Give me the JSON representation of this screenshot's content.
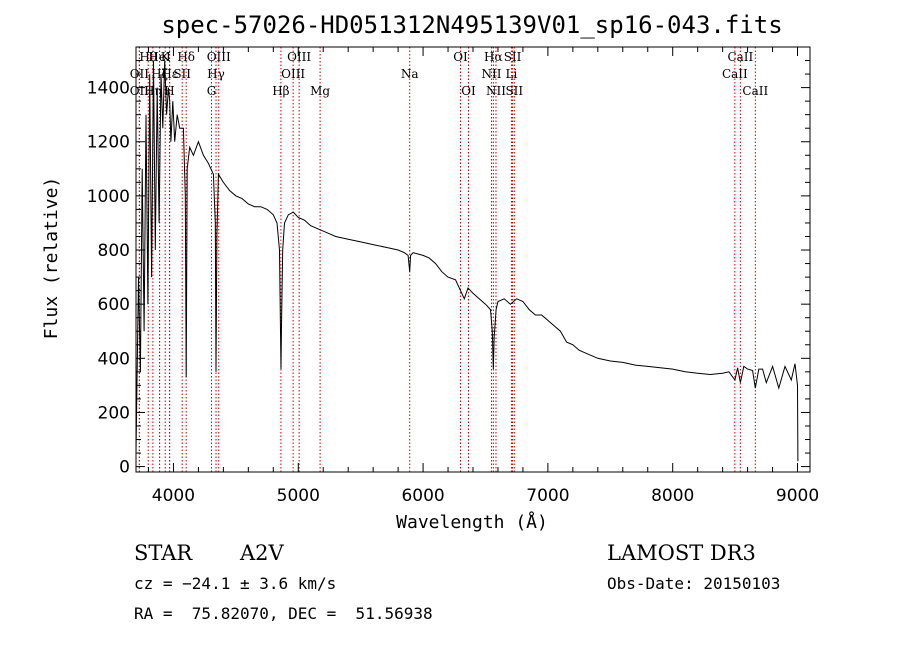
{
  "chart_data": {
    "type": "line",
    "title": "spec-57026-HD051312N495139V01_sp16-043.fits",
    "xlabel": "Wavelength (Å)",
    "ylabel": "Flux (relative)",
    "xlim": [
      3700,
      9100
    ],
    "ylim": [
      -20,
      1550
    ],
    "xticks": [
      4000,
      5000,
      6000,
      7000,
      8000,
      9000
    ],
    "yticks": [
      0,
      200,
      400,
      600,
      800,
      1000,
      1200,
      1400
    ],
    "series": [
      {
        "name": "flux",
        "x": [
          3700,
          3720,
          3735,
          3750,
          3765,
          3780,
          3795,
          3810,
          3825,
          3840,
          3855,
          3870,
          3885,
          3900,
          3915,
          3930,
          3945,
          3960,
          3970,
          3980,
          3995,
          4010,
          4030,
          4050,
          4080,
          4095,
          4102,
          4110,
          4130,
          4160,
          4200,
          4240,
          4280,
          4320,
          4335,
          4341,
          4348,
          4360,
          4400,
          4450,
          4500,
          4550,
          4600,
          4650,
          4700,
          4750,
          4800,
          4830,
          4850,
          4858,
          4862,
          4866,
          4875,
          4890,
          4920,
          4960,
          5000,
          5050,
          5100,
          5150,
          5200,
          5250,
          5300,
          5400,
          5500,
          5600,
          5700,
          5800,
          5850,
          5880,
          5893,
          5900,
          5920,
          6000,
          6050,
          6100,
          6150,
          6200,
          6260,
          6300,
          6330,
          6360,
          6400,
          6450,
          6500,
          6540,
          6555,
          6563,
          6570,
          6585,
          6600,
          6650,
          6700,
          6750,
          6800,
          6850,
          6900,
          6950,
          7000,
          7050,
          7100,
          7150,
          7200,
          7250,
          7300,
          7400,
          7500,
          7600,
          7700,
          7800,
          7900,
          8000,
          8100,
          8200,
          8300,
          8400,
          8450,
          8498,
          8520,
          8542,
          8570,
          8600,
          8640,
          8662,
          8690,
          8720,
          8750,
          8800,
          8850,
          8900,
          8950,
          8980,
          9000,
          9003
        ],
        "y": [
          50,
          700,
          350,
          1100,
          500,
          1300,
          600,
          1450,
          700,
          1500,
          800,
          1400,
          900,
          1450,
          1250,
          1500,
          1300,
          1400,
          1350,
          1200,
          1350,
          1200,
          1300,
          1250,
          1250,
          1000,
          330,
          1100,
          1180,
          1150,
          1200,
          1150,
          1120,
          1080,
          900,
          350,
          850,
          1080,
          1050,
          1020,
          1000,
          990,
          970,
          960,
          960,
          950,
          930,
          900,
          800,
          500,
          360,
          520,
          800,
          900,
          930,
          940,
          920,
          910,
          890,
          880,
          870,
          860,
          850,
          840,
          830,
          820,
          810,
          800,
          790,
          780,
          720,
          780,
          790,
          780,
          770,
          750,
          720,
          700,
          690,
          650,
          620,
          660,
          640,
          620,
          600,
          580,
          500,
          360,
          480,
          580,
          610,
          620,
          600,
          620,
          610,
          580,
          560,
          560,
          540,
          520,
          500,
          460,
          450,
          430,
          420,
          400,
          390,
          385,
          375,
          370,
          365,
          360,
          350,
          345,
          340,
          345,
          350,
          320,
          365,
          310,
          370,
          360,
          355,
          290,
          360,
          360,
          310,
          370,
          290,
          370,
          320,
          380,
          300,
          20
        ]
      }
    ],
    "lines": [
      {
        "label": "Hθ",
        "wave": 3798,
        "row": 1
      },
      {
        "label": "Hη",
        "wave": 3835,
        "row": 3
      },
      {
        "label": "OII",
        "wave": 3727,
        "row": 3
      },
      {
        "label": "OII",
        "wave": 3727,
        "row": 2
      },
      {
        "label": "Hζ",
        "wave": 3889,
        "row": 2
      },
      {
        "label": "K",
        "wave": 3934,
        "row": 1
      },
      {
        "label": "HeI",
        "wave": 3889,
        "row": 1
      },
      {
        "label": "H",
        "wave": 3968,
        "row": 3
      },
      {
        "label": "SII",
        "wave": 4070,
        "row": 2
      },
      {
        "label": "Hε",
        "wave": 3970,
        "row": 2
      },
      {
        "label": "Hδ",
        "wave": 4102,
        "row": 1
      },
      {
        "label": "OIII",
        "wave": 4363,
        "row": 1
      },
      {
        "label": "Hγ",
        "wave": 4341,
        "row": 2
      },
      {
        "label": "G",
        "wave": 4305,
        "row": 3
      },
      {
        "label": "Hβ",
        "wave": 4861,
        "row": 3
      },
      {
        "label": "OIII",
        "wave": 4959,
        "row": 2
      },
      {
        "label": "OIII",
        "wave": 5007,
        "row": 1
      },
      {
        "label": "Mg",
        "wave": 5175,
        "row": 3
      },
      {
        "label": "Na",
        "wave": 5893,
        "row": 2
      },
      {
        "label": "OI",
        "wave": 6300,
        "row": 1
      },
      {
        "label": "OI",
        "wave": 6364,
        "row": 3
      },
      {
        "label": "Hα",
        "wave": 6563,
        "row": 1
      },
      {
        "label": "NII",
        "wave": 6548,
        "row": 2
      },
      {
        "label": "NII",
        "wave": 6584,
        "row": 3
      },
      {
        "label": "SII",
        "wave": 6717,
        "row": 1
      },
      {
        "label": "Li",
        "wave": 6708,
        "row": 2
      },
      {
        "label": "SII",
        "wave": 6731,
        "row": 3
      },
      {
        "label": "CaII",
        "wave": 8542,
        "row": 1
      },
      {
        "label": "CaII",
        "wave": 8498,
        "row": 2
      },
      {
        "label": "CaII",
        "wave": 8662,
        "row": 3
      }
    ],
    "colors": {
      "line": "#000000",
      "marker": "#cc0000"
    }
  },
  "info": {
    "star_label": "STAR",
    "spectral_type": "A2V",
    "survey": "LAMOST DR3",
    "cz": "cz = −24.1 ± 3.6 km/s",
    "obs_date": "Obs-Date: 20150103",
    "coords": "RA =  75.82070, DEC =  51.56938"
  }
}
